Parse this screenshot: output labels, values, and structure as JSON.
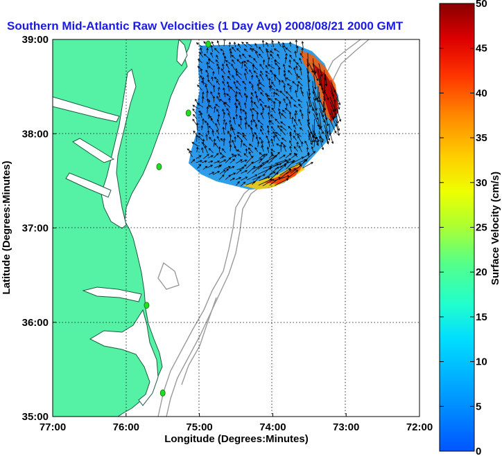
{
  "title": "Southern Mid-Atlantic Raw Velocities (1 Day Avg) 2008/08/21 2000 GMT",
  "chart_data": {
    "type": "vector-field map",
    "title": "Southern Mid-Atlantic Raw Velocities (1 Day Avg) 2008/08/21 2000 GMT",
    "xlabel": "Longitude (Degrees:Minutes)",
    "ylabel": "Latitude (Degrees:Minutes)",
    "x_ticks": [
      "77:00",
      "76:00",
      "75:00",
      "74:00",
      "73:00",
      "72:00"
    ],
    "y_ticks": [
      "39:00",
      "38:00",
      "37:00",
      "36:00",
      "35:00"
    ],
    "xlim": [
      -77,
      -72
    ],
    "ylim": [
      35,
      39
    ],
    "grid": true,
    "colorbar": {
      "label": "Surface Velocity (cm/s)",
      "range": [
        0,
        50
      ],
      "ticks": [
        "50",
        "45",
        "40",
        "35",
        "30",
        "25",
        "20",
        "15",
        "10",
        "5",
        "0"
      ],
      "colormap": "jet"
    },
    "stations": [
      {
        "lon": -74.88,
        "lat": 38.95
      },
      {
        "lon": -75.15,
        "lat": 38.22
      },
      {
        "lon": -75.55,
        "lat": 37.65
      },
      {
        "lon": -75.72,
        "lat": 36.18
      },
      {
        "lon": -75.5,
        "lat": 35.25
      }
    ],
    "velocity_region": {
      "lon_range": [
        -75.05,
        -72.95
      ],
      "lat_range": [
        37.45,
        38.95
      ],
      "typical_speed": 8,
      "max_speed": 50
    }
  },
  "colors": {
    "title": "#1a1ae6",
    "land": "#55f2a5",
    "station": "#22dd22",
    "contour": "#999999"
  }
}
